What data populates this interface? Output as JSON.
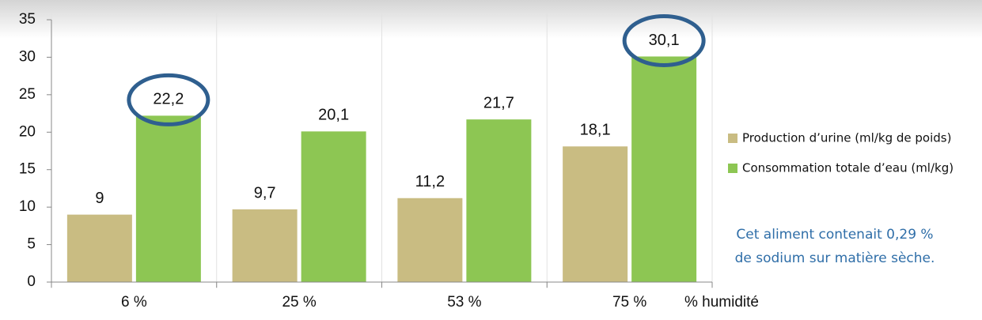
{
  "chart_data": {
    "type": "bar",
    "categories": [
      "6 %",
      "25 %",
      "53 %",
      "75 %"
    ],
    "x_label": "% humidité",
    "series": [
      {
        "name": "Production d’urine (ml/kg de poids)",
        "color": "#c9bc82",
        "values": [
          9,
          9.7,
          11.2,
          18.1
        ],
        "value_labels": [
          "9",
          "9,7",
          "11,2",
          "18,1"
        ],
        "circled": [
          false,
          false,
          false,
          false
        ]
      },
      {
        "name": "Consommation totale d’eau (ml/kg)",
        "color": "#8dc653",
        "values": [
          22.2,
          20.1,
          21.7,
          30.1
        ],
        "value_labels": [
          "22,2",
          "20,1",
          "21,7",
          "30,1"
        ],
        "circled": [
          true,
          false,
          false,
          true
        ]
      }
    ],
    "ylim": [
      0,
      35
    ],
    "yticks": [
      0,
      5,
      10,
      15,
      20,
      25,
      30,
      35
    ],
    "annotation": [
      "Cet aliment contenait 0,29 %",
      "de sodium sur matière sèche."
    ]
  }
}
